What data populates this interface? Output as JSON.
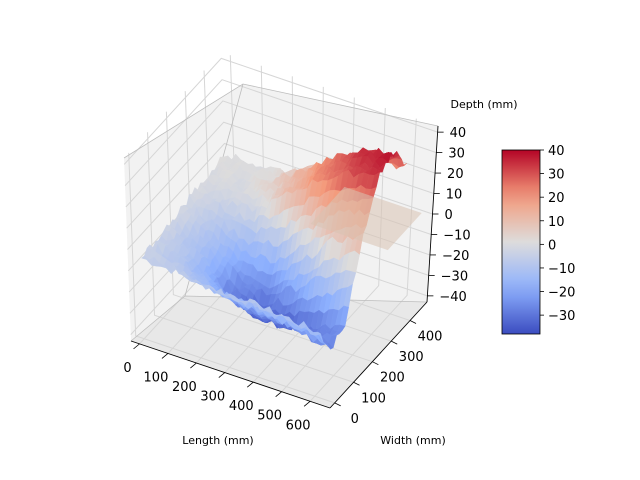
{
  "chart_data": {
    "type": "surface3d",
    "title": "",
    "xlabel": "Length (mm)",
    "ylabel": "Width (mm)",
    "zlabel": "Depth (mm)",
    "xlim": [
      -30,
      670
    ],
    "ylim": [
      -25,
      490
    ],
    "zlim": [
      -43,
      43
    ],
    "x_ticks": [
      0,
      100,
      200,
      300,
      400,
      500,
      600
    ],
    "y_ticks": [
      0,
      100,
      200,
      300,
      400
    ],
    "z_ticks": [
      -40,
      -30,
      -20,
      -10,
      0,
      10,
      20,
      30,
      40
    ],
    "x_tick_labels": [
      "0",
      "100",
      "200",
      "300",
      "400",
      "500",
      "600"
    ],
    "y_tick_labels": [
      "0",
      "100",
      "200",
      "300",
      "400"
    ],
    "z_tick_labels": [
      "−40",
      "−30",
      "−20",
      "−10",
      "0",
      "10",
      "20",
      "30",
      "40"
    ],
    "grid": true,
    "colormap": "coolwarm",
    "colorbar": {
      "location": "right",
      "vmin": -38,
      "vmax": 40,
      "ticks": [
        -30,
        -20,
        -10,
        0,
        10,
        20,
        30,
        40
      ],
      "tick_labels": [
        "−30",
        "−20",
        "−10",
        "0",
        "10",
        "20",
        "30",
        "40"
      ]
    },
    "surface_profile": {
      "description_of_shape": "trench along length with raised ridge on one side",
      "x_samples": [
        0,
        100,
        200,
        300,
        400,
        500,
        600
      ],
      "y_samples": [
        0,
        75,
        150,
        225,
        300,
        375,
        450
      ],
      "z": [
        [
          -5,
          -6,
          -8,
          -8,
          -9,
          -10,
          -12
        ],
        [
          -4,
          -10,
          -18,
          -20,
          -22,
          -25,
          -28
        ],
        [
          -3,
          -12,
          -28,
          -35,
          -34,
          -30,
          -22
        ],
        [
          -2,
          -10,
          -20,
          -22,
          -10,
          5,
          12
        ],
        [
          -1,
          -4,
          -2,
          10,
          22,
          30,
          36
        ],
        [
          0,
          0,
          4,
          14,
          25,
          34,
          38
        ],
        [
          0,
          0,
          2,
          8,
          14,
          20,
          24
        ]
      ]
    },
    "reference_plane_z": 0
  },
  "colors": {
    "pane": "#f2f2f2",
    "grid": "#e0e0e0",
    "plane": "#d9c3b2"
  }
}
